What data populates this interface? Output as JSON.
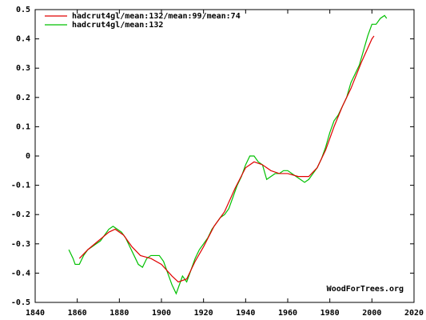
{
  "chart_data": {
    "type": "line",
    "xlim": [
      1840,
      2020
    ],
    "xticks": [
      1840,
      1860,
      1880,
      1900,
      1920,
      1940,
      1960,
      1980,
      2000,
      2020
    ],
    "ylim": [
      -0.5,
      0.5
    ],
    "yticks": [
      -0.5,
      -0.4,
      -0.3,
      -0.2,
      -0.1,
      0,
      0.1,
      0.2,
      0.3,
      0.4,
      0.5
    ],
    "legend": "upper left",
    "annotation": "WoodForTrees.org",
    "series": [
      {
        "name": "hadcrut4gl/mean:132/mean:99/mean:74",
        "color": "#e00000",
        "x": [
          1861,
          1865,
          1870,
          1875,
          1878,
          1882,
          1886,
          1890,
          1895,
          1900,
          1905,
          1908,
          1912,
          1916,
          1920,
          1925,
          1930,
          1935,
          1940,
          1944,
          1948,
          1952,
          1956,
          1960,
          1965,
          1970,
          1974,
          1978,
          1982,
          1986,
          1990,
          1995,
          2000,
          2001
        ],
        "values": [
          -0.35,
          -0.32,
          -0.29,
          -0.26,
          -0.25,
          -0.27,
          -0.31,
          -0.34,
          -0.35,
          -0.37,
          -0.41,
          -0.43,
          -0.42,
          -0.36,
          -0.31,
          -0.24,
          -0.19,
          -0.11,
          -0.04,
          -0.02,
          -0.03,
          -0.05,
          -0.06,
          -0.06,
          -0.07,
          -0.07,
          -0.04,
          0.02,
          0.1,
          0.17,
          0.23,
          0.32,
          0.4,
          0.41
        ]
      },
      {
        "name": "hadcrut4gl/mean:132",
        "color": "#00c000",
        "x": [
          1856,
          1858,
          1859,
          1861,
          1863,
          1865,
          1867,
          1869,
          1871,
          1873,
          1875,
          1877,
          1879,
          1881,
          1883,
          1885,
          1887,
          1889,
          1891,
          1893,
          1895,
          1897,
          1899,
          1901,
          1903,
          1905,
          1907,
          1909,
          1910,
          1912,
          1914,
          1916,
          1918,
          1920,
          1922,
          1924,
          1926,
          1928,
          1930,
          1932,
          1934,
          1936,
          1938,
          1940,
          1942,
          1944,
          1946,
          1948,
          1950,
          1952,
          1954,
          1956,
          1958,
          1960,
          1962,
          1964,
          1966,
          1968,
          1970,
          1972,
          1974,
          1976,
          1978,
          1980,
          1982,
          1984,
          1986,
          1988,
          1990,
          1992,
          1994,
          1996,
          1998,
          2000,
          2002,
          2004,
          2006,
          2007
        ],
        "values": [
          -0.32,
          -0.35,
          -0.37,
          -0.37,
          -0.34,
          -0.32,
          -0.31,
          -0.3,
          -0.29,
          -0.27,
          -0.25,
          -0.24,
          -0.25,
          -0.26,
          -0.28,
          -0.31,
          -0.34,
          -0.37,
          -0.38,
          -0.35,
          -0.34,
          -0.34,
          -0.34,
          -0.36,
          -0.4,
          -0.44,
          -0.47,
          -0.43,
          -0.41,
          -0.43,
          -0.39,
          -0.35,
          -0.32,
          -0.3,
          -0.28,
          -0.25,
          -0.23,
          -0.21,
          -0.2,
          -0.18,
          -0.14,
          -0.1,
          -0.07,
          -0.03,
          0.0,
          0.0,
          -0.02,
          -0.03,
          -0.08,
          -0.07,
          -0.06,
          -0.06,
          -0.05,
          -0.05,
          -0.06,
          -0.07,
          -0.08,
          -0.09,
          -0.08,
          -0.06,
          -0.04,
          -0.01,
          0.03,
          0.08,
          0.12,
          0.14,
          0.17,
          0.2,
          0.25,
          0.28,
          0.31,
          0.36,
          0.41,
          0.45,
          0.45,
          0.47,
          0.48,
          0.47
        ]
      }
    ]
  }
}
